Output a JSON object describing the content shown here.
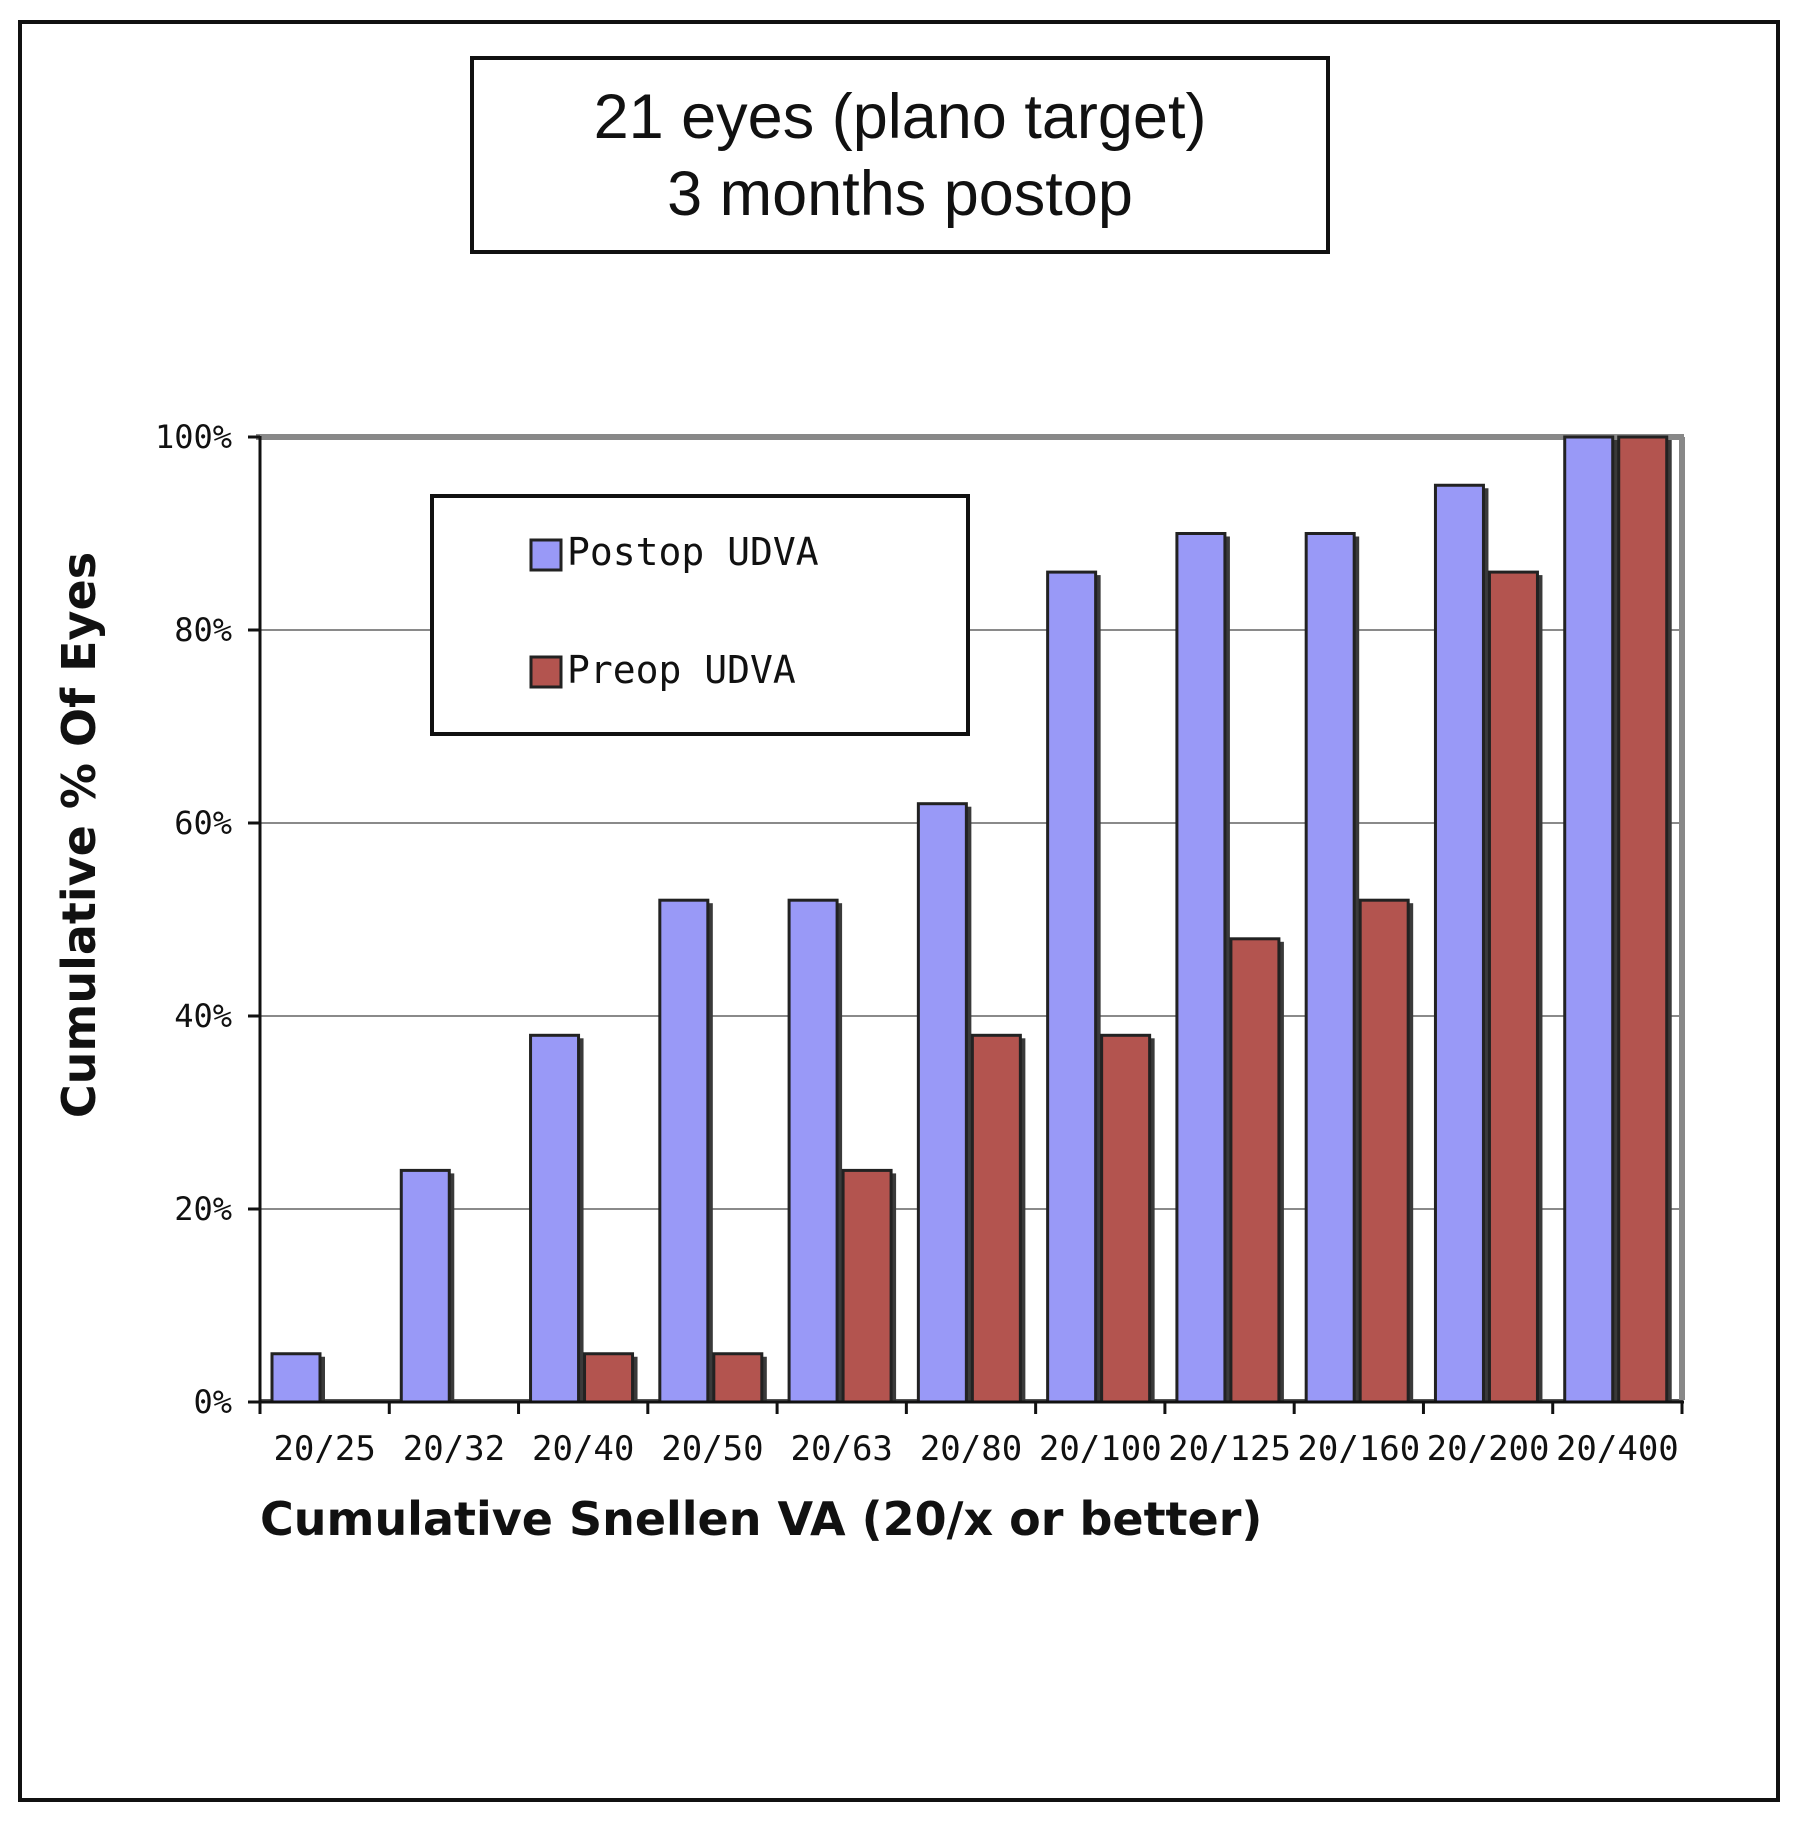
{
  "chart_data": {
    "type": "bar",
    "title": [
      "21 eyes (plano target)",
      "3 months postop"
    ],
    "xlabel": "Cumulative Snellen VA (20/x or better)",
    "ylabel": "Cumulative % Of Eyes",
    "ylim": [
      0,
      100
    ],
    "yticks": [
      0,
      20,
      40,
      60,
      80,
      100
    ],
    "ytick_labels": [
      "0%",
      "20%",
      "40%",
      "60%",
      "80%",
      "100%"
    ],
    "categories": [
      "20/25",
      "20/32",
      "20/40",
      "20/50",
      "20/63",
      "20/80",
      "20/100",
      "20/125",
      "20/160",
      "20/200",
      "20/400"
    ],
    "series": [
      {
        "name": "Postop UDVA",
        "color": "#9999f7",
        "values": [
          5,
          24,
          38,
          52,
          52,
          62,
          86,
          90,
          90,
          95,
          100
        ]
      },
      {
        "name": "Preop UDVA",
        "color": "#b3544f",
        "values": [
          0,
          0,
          5,
          5,
          24,
          38,
          38,
          48,
          52,
          86,
          100
        ]
      }
    ],
    "legend_position": "upper-left",
    "grid": true
  }
}
